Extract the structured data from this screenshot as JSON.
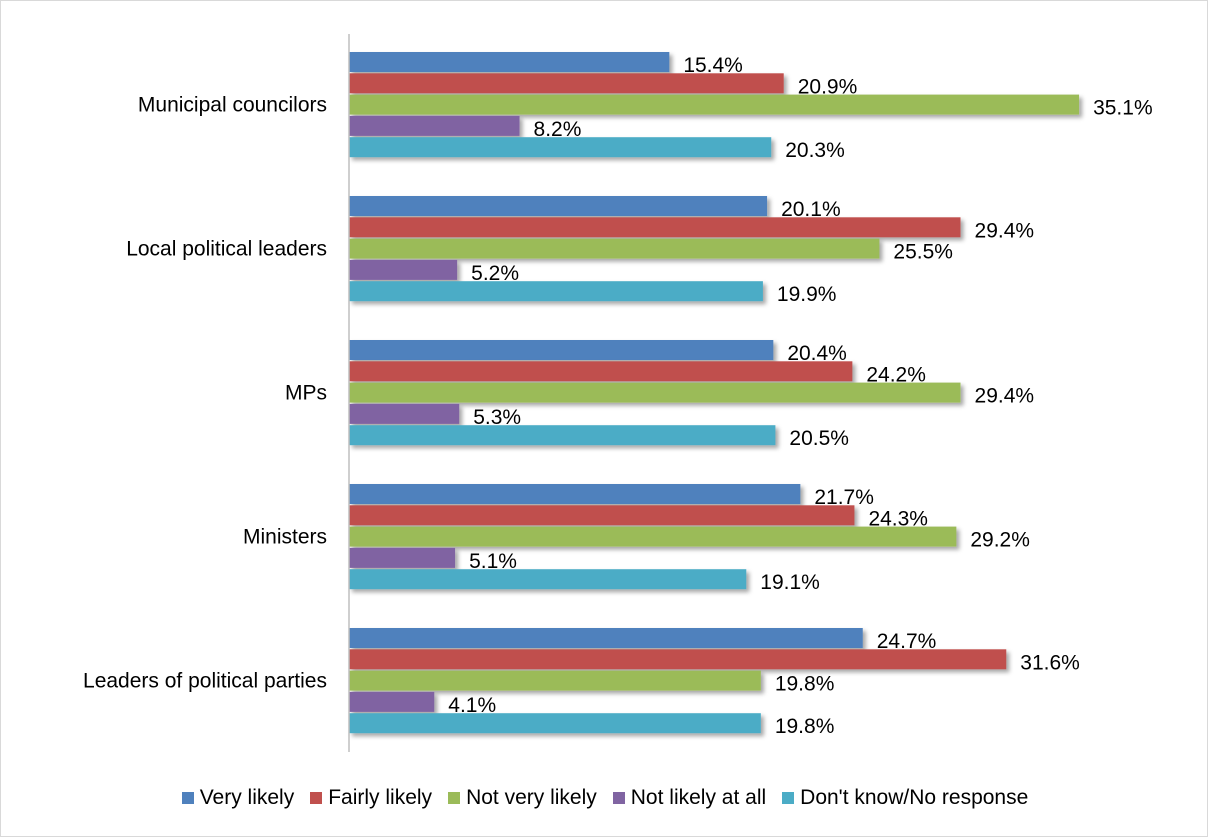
{
  "chart_data": {
    "type": "bar",
    "orientation": "horizontal",
    "categories": [
      "Municipal councilors",
      "Local political leaders",
      "MPs",
      "Ministers",
      "Leaders of political parties"
    ],
    "series": [
      {
        "name": "Very likely",
        "color": "#4F81BD",
        "values": [
          15.4,
          20.1,
          20.4,
          21.7,
          24.7
        ],
        "labels": [
          "15.4%",
          "20.1%",
          "20.4%",
          "21.7%",
          "24.7%"
        ]
      },
      {
        "name": "Fairly likely",
        "color": "#C0504D",
        "values": [
          20.9,
          29.4,
          24.2,
          24.3,
          31.6
        ],
        "labels": [
          "20.9%",
          "29.4%",
          "24.2%",
          "24.3%",
          "31.6%"
        ]
      },
      {
        "name": "Not very likely",
        "color": "#9BBB59",
        "values": [
          35.1,
          25.5,
          29.4,
          29.2,
          19.8
        ],
        "labels": [
          "35.1%",
          "25.5%",
          "29.4%",
          "29.2%",
          "19.8%"
        ]
      },
      {
        "name": "Not likely at all",
        "color": "#8064A2",
        "values": [
          8.2,
          5.2,
          5.3,
          5.1,
          4.1
        ],
        "labels": [
          "8.2%",
          "5.2%",
          "5.3%",
          "5.1%",
          "4.1%"
        ]
      },
      {
        "name": "Don't know/No response",
        "color": "#4BACC6",
        "values": [
          20.3,
          19.9,
          20.5,
          19.1,
          19.8
        ],
        "labels": [
          "20.3%",
          "19.9%",
          "20.5%",
          "19.1%",
          "19.8%"
        ]
      }
    ],
    "xlim": [
      0,
      40
    ],
    "grid": false,
    "legend_position": "bottom"
  }
}
